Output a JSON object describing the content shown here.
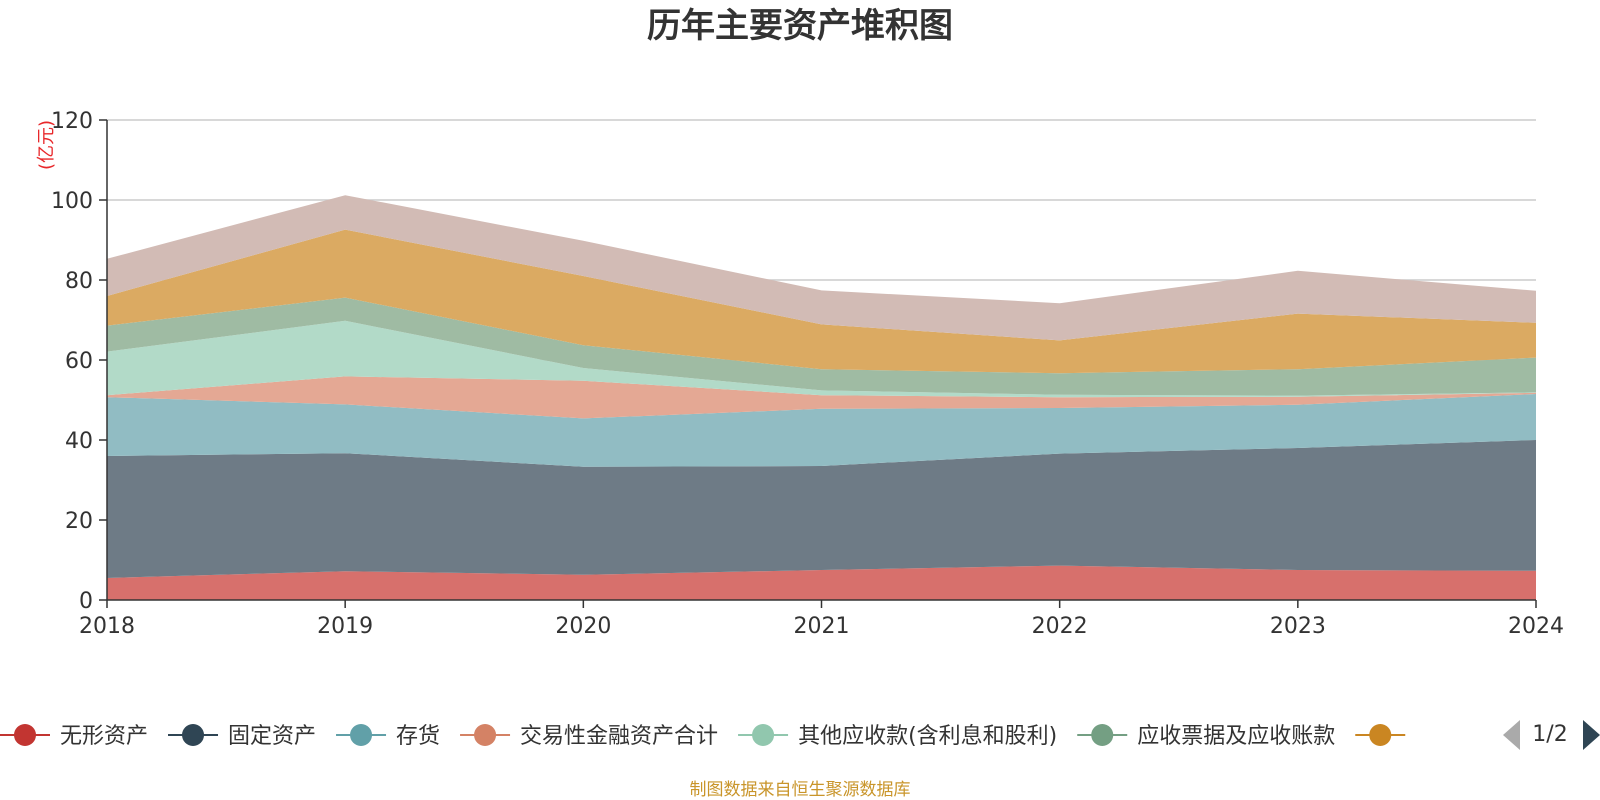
{
  "chart_data": {
    "type": "area",
    "stacked": true,
    "title": "历年主要资产堆积图",
    "unit_label": "(亿元)",
    "x": [
      "2018",
      "2019",
      "2020",
      "2021",
      "2022",
      "2023",
      "2024"
    ],
    "ylim": [
      0,
      120
    ],
    "yticks": [
      0,
      20,
      40,
      60,
      80,
      100,
      120
    ],
    "grid": true,
    "legend_position": "bottom",
    "series": [
      {
        "name": "无形资产",
        "color": "#d7706c",
        "legend_color": "#c23531",
        "values": [
          5.5,
          7.2,
          6.3,
          7.5,
          8.6,
          7.5,
          7.3
        ]
      },
      {
        "name": "固定资产",
        "color": "#6e7b86",
        "legend_color": "#2f4554",
        "values": [
          30.5,
          29.5,
          27.0,
          26.0,
          28.0,
          30.5,
          32.7
        ]
      },
      {
        "name": "存货",
        "color": "#91bcc3",
        "legend_color": "#61a0a8",
        "values": [
          14.7,
          12.2,
          12.1,
          14.3,
          11.4,
          10.8,
          11.5
        ]
      },
      {
        "name": "交易性金融资产合计",
        "color": "#e4a894",
        "legend_color": "#d48265",
        "values": [
          0.5,
          7.0,
          9.4,
          3.4,
          2.7,
          2.0,
          0.3
        ]
      },
      {
        "name": "其他应收款(含利息和股利)",
        "color": "#b2dac8",
        "legend_color": "#91c7ae",
        "values": [
          10.9,
          13.9,
          3.2,
          1.2,
          0.6,
          0.3,
          0.1
        ]
      },
      {
        "name": "应收票据及应收账款",
        "color": "#9fbba3",
        "legend_color": "#749f83",
        "values": [
          6.5,
          5.8,
          5.7,
          5.3,
          5.4,
          6.6,
          8.7
        ]
      },
      {
        "name": "",
        "color": "#dbaa62",
        "legend_color": "#ca8622",
        "values": [
          7.4,
          17.0,
          17.3,
          11.2,
          8.2,
          13.9,
          8.7
        ]
      },
      {
        "name": "",
        "color": "#d2bbb5",
        "legend_color": "#bda29a",
        "values": [
          9.3,
          8.6,
          8.8,
          8.5,
          9.3,
          10.7,
          8.0
        ]
      }
    ]
  },
  "legend": {
    "page_indicator": "1/2",
    "prev_icon": "triangle-left-icon",
    "next_icon": "triangle-right-icon",
    "prev_color": "#aaaaaa",
    "next_color": "#2f4554"
  },
  "footer": {
    "text": "制图数据来自恒生聚源数据库"
  }
}
